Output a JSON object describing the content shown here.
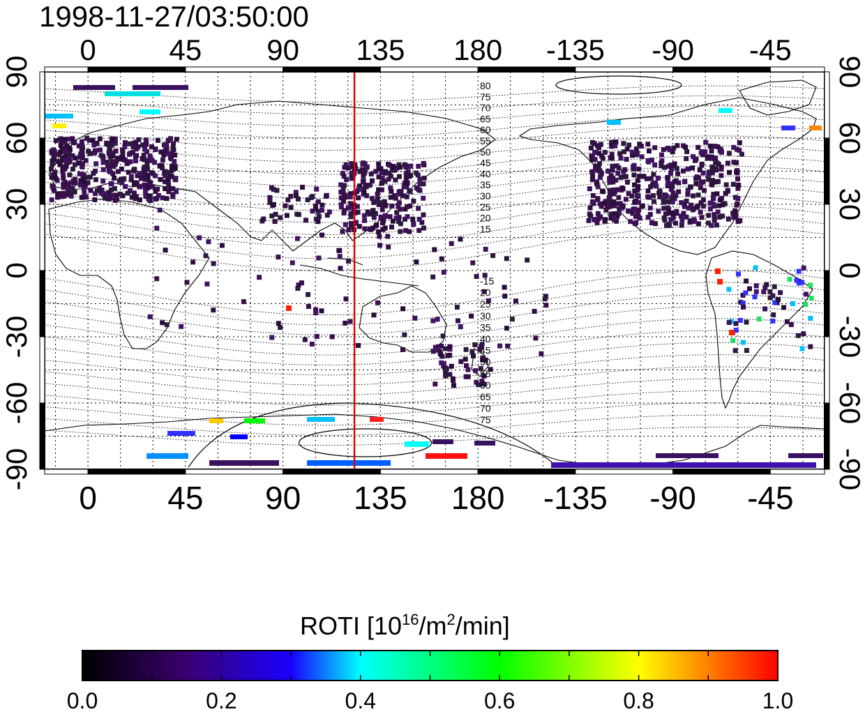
{
  "timestamp": "1998-11-27/03:50:00",
  "map": {
    "lon_ticks": [
      "0",
      "45",
      "90",
      "135",
      "180",
      "-135",
      "-90",
      "-45"
    ],
    "lat_ticks": [
      "90",
      "60",
      "30",
      "0",
      "-30",
      "-60",
      "-90"
    ],
    "lon_range": [
      -20,
      340
    ],
    "lat_range": [
      -90,
      90
    ],
    "grid": true,
    "marker_line_longitude": 123,
    "marker_line_color": "#e00000",
    "contour_labels_north": [
      "80",
      "75",
      "70",
      "65",
      "60",
      "55",
      "50",
      "45",
      "40",
      "35",
      "30",
      "25",
      "20",
      "15"
    ],
    "contour_labels_south": [
      "-15",
      "20",
      "25",
      "30",
      "35",
      "40",
      "45",
      "50",
      "55",
      "60",
      "65",
      "70",
      "75"
    ]
  },
  "colorbar": {
    "title_prefix": "ROTI  [10",
    "title_sup1": "16",
    "title_mid": "/m",
    "title_sup2": "2",
    "title_suffix": "/min]",
    "ticks": [
      "0.0",
      "0.2",
      "0.4",
      "0.6",
      "0.8",
      "1.0"
    ],
    "range": [
      0,
      1
    ],
    "colors": [
      "#000000",
      "#3a0070",
      "#0000ff",
      "#00ffff",
      "#00ff00",
      "#ffff00",
      "#ff0000"
    ]
  }
}
